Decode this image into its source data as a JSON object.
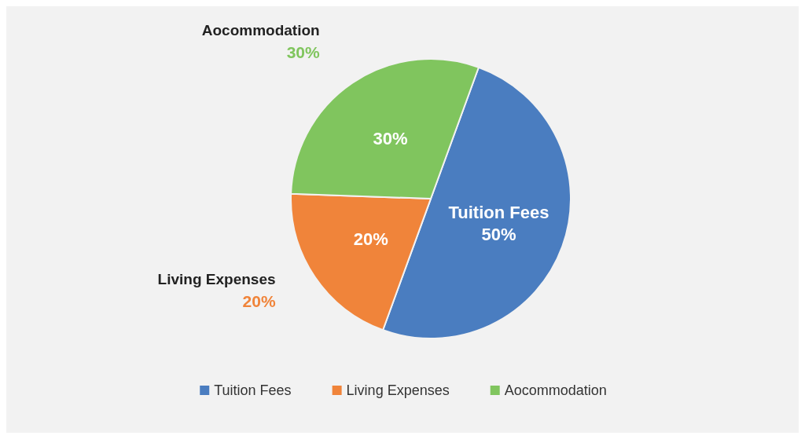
{
  "chart_data": {
    "type": "pie",
    "categories": [
      "Tuition Fees",
      "Living Expenses",
      "Aocommodation"
    ],
    "values": [
      50,
      20,
      30
    ],
    "value_labels": [
      "50%",
      "20%",
      "30%"
    ],
    "colors": [
      "#4a7dc0",
      "#f0843a",
      "#80c55e"
    ],
    "legend": "bottom"
  }
}
